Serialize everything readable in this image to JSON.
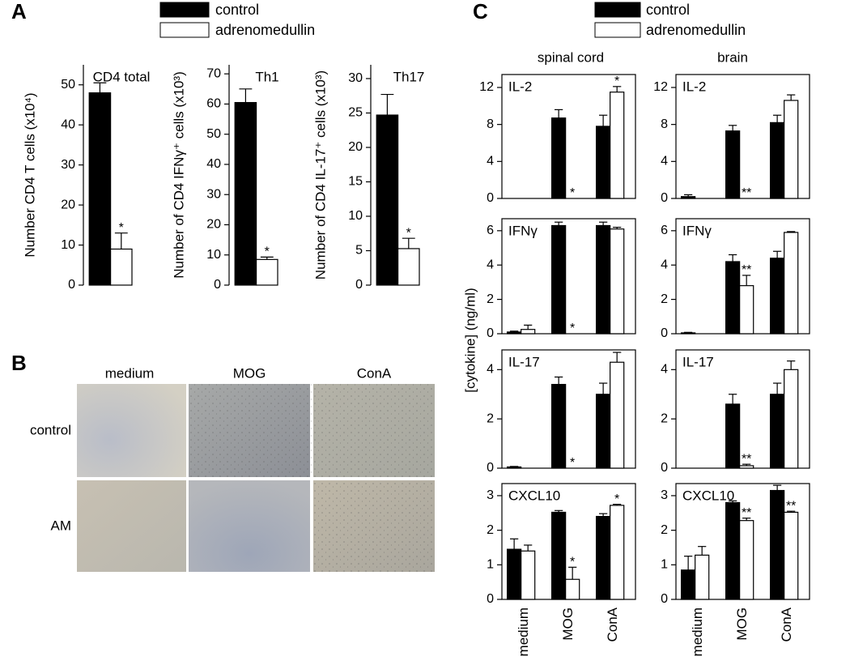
{
  "panel_labels": [
    "A",
    "B",
    "C"
  ],
  "panel_b": {
    "columns": [
      "medium",
      "MOG",
      "ConA"
    ],
    "rows": [
      "control",
      "AM"
    ]
  },
  "panel_c": {
    "columns": [
      "spinal cord",
      "brain"
    ],
    "y_label": "[cytokine] (ng/ml)"
  },
  "chart_data": [
    {
      "type": "bar",
      "title": "CD4 total",
      "y_label": "Number CD4 T cells (x10⁴)",
      "ylim": [
        0,
        55
      ],
      "yticks": [
        0,
        10,
        20,
        30,
        40,
        50
      ],
      "series": [
        {
          "name": "control",
          "color": "#000000",
          "values": [
            48
          ],
          "errors": [
            2.5
          ],
          "significance": [
            null
          ]
        },
        {
          "name": "adrenomedullin",
          "color": "#ffffff",
          "values": [
            9
          ],
          "errors": [
            4
          ],
          "significance": [
            "*"
          ]
        }
      ]
    },
    {
      "type": "bar",
      "title": "Th1",
      "y_label": "Number of CD4 IFNγ⁺ cells (x10³)",
      "ylim": [
        0,
        73
      ],
      "yticks": [
        0,
        10,
        20,
        30,
        40,
        50,
        60,
        70
      ],
      "series": [
        {
          "name": "control",
          "color": "#000000",
          "values": [
            60.5
          ],
          "errors": [
            4.5
          ],
          "significance": [
            null
          ]
        },
        {
          "name": "adrenomedullin",
          "color": "#ffffff",
          "values": [
            8.5
          ],
          "errors": [
            0.8
          ],
          "significance": [
            "*"
          ]
        }
      ]
    },
    {
      "type": "bar",
      "title": "Th17",
      "y_label": "Number of CD4 IL-17⁺ cells (x10³)",
      "ylim": [
        0,
        32
      ],
      "yticks": [
        0,
        5,
        10,
        15,
        20,
        25,
        30
      ],
      "series": [
        {
          "name": "control",
          "color": "#000000",
          "values": [
            24.7
          ],
          "errors": [
            3
          ],
          "significance": [
            null
          ]
        },
        {
          "name": "adrenomedullin",
          "color": "#ffffff",
          "values": [
            5.3
          ],
          "errors": [
            1.5
          ],
          "significance": [
            "*"
          ]
        }
      ]
    },
    {
      "type": "bar",
      "title": "IL-2",
      "ylim": [
        0,
        13.4
      ],
      "yticks": [
        0,
        4,
        8,
        12
      ],
      "series": [
        {
          "name": "control",
          "color": "#000000",
          "values": [
            0,
            8.7,
            7.8
          ],
          "errors": [
            0,
            0.9,
            1.2
          ],
          "significance": [
            null,
            null,
            null
          ]
        },
        {
          "name": "adrenomedullin",
          "color": "#ffffff",
          "values": [
            0,
            0,
            11.5
          ],
          "errors": [
            0,
            0,
            0.6
          ],
          "significance": [
            null,
            "*",
            "*"
          ]
        }
      ]
    },
    {
      "type": "bar",
      "title": "IL-2",
      "ylim": [
        0,
        13.4
      ],
      "yticks": [
        0,
        4,
        8,
        12
      ],
      "series": [
        {
          "name": "control",
          "color": "#000000",
          "values": [
            0.2,
            7.3,
            8.2
          ],
          "errors": [
            0.2,
            0.6,
            0.8
          ],
          "significance": [
            null,
            null,
            null
          ]
        },
        {
          "name": "adrenomedullin",
          "color": "#ffffff",
          "values": [
            0,
            0,
            10.6
          ],
          "errors": [
            0,
            0,
            0.6
          ],
          "significance": [
            null,
            "**",
            null
          ]
        }
      ]
    },
    {
      "type": "bar",
      "title": "IFNγ",
      "ylim": [
        0,
        6.7
      ],
      "yticks": [
        0,
        2,
        4,
        6
      ],
      "series": [
        {
          "name": "control",
          "color": "#000000",
          "values": [
            0.1,
            6.3,
            6.3
          ],
          "errors": [
            0.05,
            0.2,
            0.2
          ],
          "significance": [
            null,
            null,
            null
          ]
        },
        {
          "name": "adrenomedullin",
          "color": "#ffffff",
          "values": [
            0.25,
            0,
            6.1
          ],
          "errors": [
            0.25,
            0,
            0.1
          ],
          "significance": [
            null,
            "*",
            null
          ]
        }
      ]
    },
    {
      "type": "bar",
      "title": "IFNγ",
      "ylim": [
        0,
        6.7
      ],
      "yticks": [
        0,
        2,
        4,
        6
      ],
      "series": [
        {
          "name": "control",
          "color": "#000000",
          "values": [
            0.05,
            4.2,
            4.4
          ],
          "errors": [
            0.03,
            0.4,
            0.4
          ],
          "significance": [
            null,
            null,
            null
          ]
        },
        {
          "name": "adrenomedullin",
          "color": "#ffffff",
          "values": [
            0,
            2.8,
            5.9
          ],
          "errors": [
            0,
            0.6,
            0.05
          ],
          "significance": [
            null,
            "**",
            null
          ]
        }
      ]
    },
    {
      "type": "bar",
      "title": "IL-17",
      "ylim": [
        0,
        4.8
      ],
      "yticks": [
        0,
        2,
        4
      ],
      "series": [
        {
          "name": "control",
          "color": "#000000",
          "values": [
            0.05,
            3.4,
            3.0
          ],
          "errors": [
            0.02,
            0.3,
            0.45
          ],
          "significance": [
            null,
            null,
            null
          ]
        },
        {
          "name": "adrenomedullin",
          "color": "#ffffff",
          "values": [
            0,
            0,
            4.3
          ],
          "errors": [
            0,
            0,
            0.4
          ],
          "significance": [
            null,
            "*",
            null
          ]
        }
      ]
    },
    {
      "type": "bar",
      "title": "IL-17",
      "ylim": [
        0,
        4.8
      ],
      "yticks": [
        0,
        2,
        4
      ],
      "series": [
        {
          "name": "control",
          "color": "#000000",
          "values": [
            0,
            2.6,
            3.0
          ],
          "errors": [
            0,
            0.4,
            0.45
          ],
          "significance": [
            null,
            null,
            null
          ]
        },
        {
          "name": "adrenomedullin",
          "color": "#ffffff",
          "values": [
            0,
            0.1,
            4.0
          ],
          "errors": [
            0,
            0.06,
            0.35
          ],
          "significance": [
            null,
            "**",
            null
          ]
        }
      ]
    },
    {
      "type": "bar",
      "title": "CXCL10",
      "categories": [
        "medium",
        "MOG",
        "ConA"
      ],
      "ylim": [
        0,
        3.35
      ],
      "yticks": [
        0,
        1,
        2,
        3
      ],
      "series": [
        {
          "name": "control",
          "color": "#000000",
          "values": [
            1.45,
            2.52,
            2.4
          ],
          "errors": [
            0.3,
            0.05,
            0.08
          ],
          "significance": [
            null,
            null,
            null
          ]
        },
        {
          "name": "adrenomedullin",
          "color": "#ffffff",
          "values": [
            1.4,
            0.58,
            2.72
          ],
          "errors": [
            0.17,
            0.35,
            0.03
          ],
          "significance": [
            null,
            "*",
            "*"
          ]
        }
      ]
    },
    {
      "type": "bar",
      "title": "CXCL10",
      "categories": [
        "medium",
        "MOG",
        "ConA"
      ],
      "ylim": [
        0,
        3.35
      ],
      "yticks": [
        0,
        1,
        2,
        3
      ],
      "series": [
        {
          "name": "control",
          "color": "#000000",
          "values": [
            0.85,
            2.8,
            3.15
          ],
          "errors": [
            0.4,
            0.05,
            0.15
          ],
          "significance": [
            null,
            null,
            null
          ]
        },
        {
          "name": "adrenomedullin",
          "color": "#ffffff",
          "values": [
            1.28,
            2.28,
            2.52
          ],
          "errors": [
            0.25,
            0.07,
            0.03
          ],
          "significance": [
            null,
            "**",
            "**"
          ]
        }
      ]
    }
  ]
}
